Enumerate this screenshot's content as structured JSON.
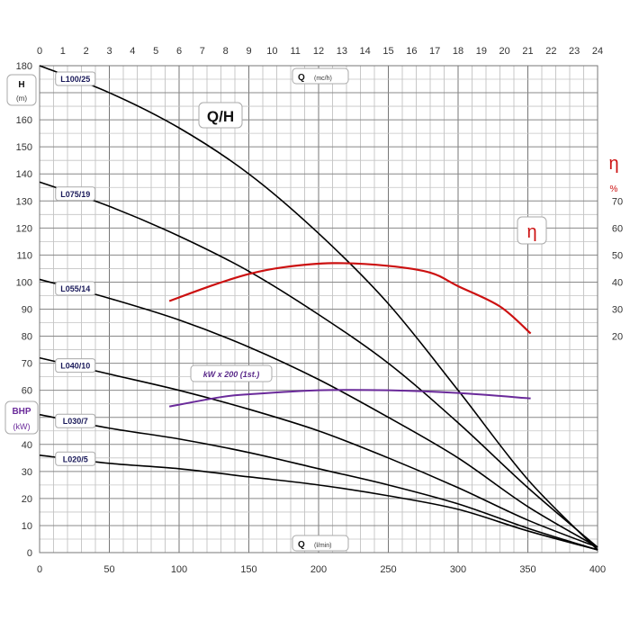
{
  "chart_data": {
    "type": "line",
    "title": "Q/H",
    "efficiency_label": "η",
    "power_label": "kW x 200 (1st.)",
    "x_bottom": {
      "label_bold": "Q",
      "label_unit": "(l/min)",
      "range": [
        0,
        400
      ],
      "ticks": [
        "0",
        "50",
        "100",
        "150",
        "200",
        "250",
        "300",
        "350",
        "400"
      ]
    },
    "x_top": {
      "label_bold": "Q",
      "label_unit": "(mc/h)",
      "range": [
        0,
        24
      ],
      "ticks": [
        "0",
        "1",
        "2",
        "3",
        "4",
        "5",
        "6",
        "7",
        "8",
        "9",
        "10",
        "11",
        "12",
        "13",
        "14",
        "15",
        "16",
        "17",
        "18",
        "19",
        "20",
        "21",
        "22",
        "23",
        "24"
      ]
    },
    "y_left": {
      "label_bold": "H",
      "label_unit": "(m)",
      "range": [
        0,
        180
      ],
      "ticks": [
        "0",
        "10",
        "20",
        "30",
        "40",
        "50",
        "60",
        "70",
        "80",
        "90",
        "100",
        "110",
        "120",
        "130",
        "140",
        "150",
        "160",
        "170",
        "180"
      ]
    },
    "y_left_secondary": {
      "label_bold": "BHP",
      "label_unit": "(kW)"
    },
    "y_right": {
      "label_bold": "η",
      "label_unit": "%",
      "range": [
        20,
        70
      ],
      "ticks": [
        "20",
        "30",
        "40",
        "50",
        "60",
        "70"
      ]
    },
    "grid": true,
    "colors": {
      "curve": "#000000",
      "efficiency": "#cc1111",
      "power": "#6a2a9a",
      "grid": "#b0b0b0"
    },
    "series": [
      {
        "name": "L100/25",
        "x": [
          0,
          50,
          100,
          150,
          200,
          250,
          300,
          350,
          400
        ],
        "y": [
          180,
          170,
          157,
          140,
          118,
          92,
          60,
          27,
          1
        ]
      },
      {
        "name": "L075/19",
        "x": [
          0,
          50,
          100,
          150,
          200,
          250,
          300,
          350,
          400
        ],
        "y": [
          137,
          128,
          117,
          104,
          88,
          70,
          48,
          24,
          2
        ]
      },
      {
        "name": "L055/14",
        "x": [
          0,
          50,
          100,
          150,
          200,
          250,
          300,
          350,
          400
        ],
        "y": [
          101,
          94,
          86,
          76,
          64,
          50,
          35,
          17,
          2
        ]
      },
      {
        "name": "L040/10",
        "x": [
          0,
          50,
          100,
          150,
          200,
          250,
          300,
          350,
          400
        ],
        "y": [
          72,
          66,
          60,
          53,
          45,
          35,
          24,
          12,
          2
        ]
      },
      {
        "name": "L030/7",
        "x": [
          0,
          50,
          100,
          150,
          200,
          250,
          300,
          350,
          400
        ],
        "y": [
          51,
          46,
          42,
          37,
          31,
          25,
          18,
          9,
          1
        ]
      },
      {
        "name": "L020/5",
        "x": [
          0,
          50,
          100,
          150,
          200,
          250,
          300,
          350,
          400
        ],
        "y": [
          36,
          33,
          31,
          28,
          25,
          21,
          16,
          8,
          1
        ]
      }
    ],
    "efficiency": {
      "name": "η",
      "x": [
        93,
        125,
        150,
        175,
        210,
        250,
        280,
        300,
        330,
        352
      ],
      "y": [
        33,
        39,
        43,
        45.5,
        47,
        46,
        43.5,
        38.5,
        31,
        21
      ]
    },
    "power": {
      "name": "kW x 200 (1st.)",
      "x": [
        93,
        130,
        150,
        200,
        250,
        300,
        352
      ],
      "y": [
        54,
        57.5,
        58.5,
        60,
        60,
        59,
        57
      ]
    }
  }
}
